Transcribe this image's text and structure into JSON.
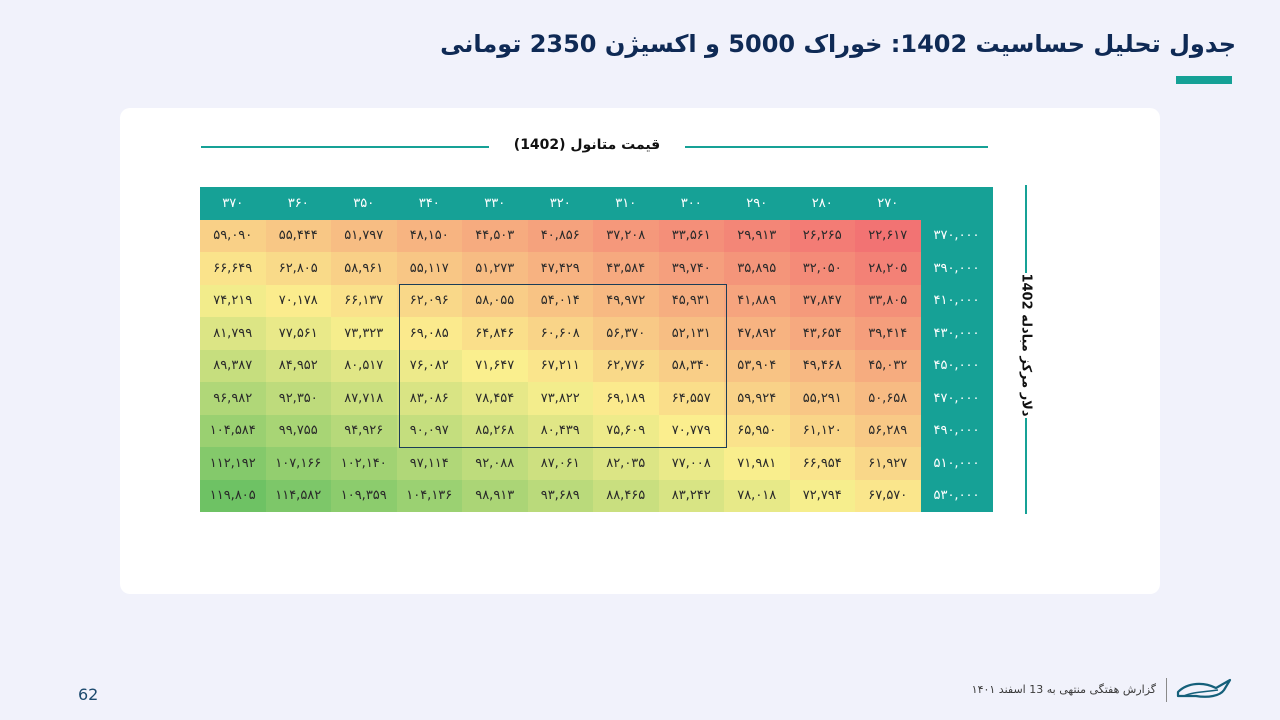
{
  "title": "جدول تحلیل حساسیت 1402: خوراک 5000 و اکسیژن 2350 تومانی",
  "column_axis_title": "قیمت متانول (1402)",
  "row_axis_title": "دلار مرکز مبادله 1402",
  "colors": {
    "accent": "#16a196",
    "title": "#0f2a55",
    "low": "#f27373",
    "mid": "#fbef8e",
    "high": "#6ec264"
  },
  "chart_data": {
    "type": "heatmap",
    "column_headers": [
      "۳۷۰",
      "۳۶۰",
      "۳۵۰",
      "۳۴۰",
      "۳۳۰",
      "۳۲۰",
      "۳۱۰",
      "۳۰۰",
      "۲۹۰",
      "۲۸۰",
      "۲۷۰"
    ],
    "rows": [
      {
        "header": "۳۷۰,۰۰۰",
        "cells": [
          "۵۹,۰۹۰",
          "۵۵,۴۴۴",
          "۵۱,۷۹۷",
          "۴۸,۱۵۰",
          "۴۴,۵۰۳",
          "۴۰,۸۵۶",
          "۳۷,۲۰۸",
          "۳۳,۵۶۱",
          "۲۹,۹۱۳",
          "۲۶,۲۶۵",
          "۲۲,۶۱۷"
        ],
        "values": [
          59090,
          55444,
          51797,
          48150,
          44503,
          40856,
          37208,
          33561,
          29913,
          26265,
          22617
        ]
      },
      {
        "header": "۳۹۰,۰۰۰",
        "cells": [
          "۶۶,۶۴۹",
          "۶۲,۸۰۵",
          "۵۸,۹۶۱",
          "۵۵,۱۱۷",
          "۵۱,۲۷۳",
          "۴۷,۴۲۹",
          "۴۳,۵۸۴",
          "۳۹,۷۴۰",
          "۳۵,۸۹۵",
          "۳۲,۰۵۰",
          "۲۸,۲۰۵"
        ],
        "values": [
          66649,
          62805,
          58961,
          55117,
          51273,
          47429,
          43584,
          39740,
          35895,
          32050,
          28205
        ]
      },
      {
        "header": "۴۱۰,۰۰۰",
        "cells": [
          "۷۴,۲۱۹",
          "۷۰,۱۷۸",
          "۶۶,۱۳۷",
          "۶۲,۰۹۶",
          "۵۸,۰۵۵",
          "۵۴,۰۱۴",
          "۴۹,۹۷۲",
          "۴۵,۹۳۱",
          "۴۱,۸۸۹",
          "۳۷,۸۴۷",
          "۳۳,۸۰۵"
        ],
        "values": [
          74219,
          70178,
          66137,
          62096,
          58055,
          54014,
          49972,
          45931,
          41889,
          37847,
          33805
        ]
      },
      {
        "header": "۴۳۰,۰۰۰",
        "cells": [
          "۸۱,۷۹۹",
          "۷۷,۵۶۱",
          "۷۳,۳۲۳",
          "۶۹,۰۸۵",
          "۶۴,۸۴۶",
          "۶۰,۶۰۸",
          "۵۶,۳۷۰",
          "۵۲,۱۳۱",
          "۴۷,۸۹۲",
          "۴۳,۶۵۴",
          "۳۹,۴۱۴"
        ],
        "values": [
          81799,
          77561,
          73323,
          69085,
          64846,
          60608,
          56370,
          52131,
          47892,
          43654,
          39414
        ]
      },
      {
        "header": "۴۵۰,۰۰۰",
        "cells": [
          "۸۹,۳۸۷",
          "۸۴,۹۵۲",
          "۸۰,۵۱۷",
          "۷۶,۰۸۲",
          "۷۱,۶۴۷",
          "۶۷,۲۱۱",
          "۶۲,۷۷۶",
          "۵۸,۳۴۰",
          "۵۳,۹۰۴",
          "۴۹,۴۶۸",
          "۴۵,۰۳۲"
        ],
        "values": [
          89387,
          84952,
          80517,
          76082,
          71647,
          67211,
          62776,
          58340,
          53904,
          49468,
          45032
        ]
      },
      {
        "header": "۴۷۰,۰۰۰",
        "cells": [
          "۹۶,۹۸۲",
          "۹۲,۳۵۰",
          "۸۷,۷۱۸",
          "۸۳,۰۸۶",
          "۷۸,۴۵۴",
          "۷۳,۸۲۲",
          "۶۹,۱۸۹",
          "۶۴,۵۵۷",
          "۵۹,۹۲۴",
          "۵۵,۲۹۱",
          "۵۰,۶۵۸"
        ],
        "values": [
          96982,
          92350,
          87718,
          83086,
          78454,
          73822,
          69189,
          64557,
          59924,
          55291,
          50658
        ]
      },
      {
        "header": "۴۹۰,۰۰۰",
        "cells": [
          "۱۰۴,۵۸۴",
          "۹۹,۷۵۵",
          "۹۴,۹۲۶",
          "۹۰,۰۹۷",
          "۸۵,۲۶۸",
          "۸۰,۴۳۹",
          "۷۵,۶۰۹",
          "۷۰,۷۷۹",
          "۶۵,۹۵۰",
          "۶۱,۱۲۰",
          "۵۶,۲۸۹"
        ],
        "values": [
          104584,
          99755,
          94926,
          90097,
          85268,
          80439,
          75609,
          70779,
          65950,
          61120,
          56289
        ]
      },
      {
        "header": "۵۱۰,۰۰۰",
        "cells": [
          "۱۱۲,۱۹۲",
          "۱۰۷,۱۶۶",
          "۱۰۲,۱۴۰",
          "۹۷,۱۱۴",
          "۹۲,۰۸۸",
          "۸۷,۰۶۱",
          "۸۲,۰۳۵",
          "۷۷,۰۰۸",
          "۷۱,۹۸۱",
          "۶۶,۹۵۴",
          "۶۱,۹۲۷"
        ],
        "values": [
          112192,
          107166,
          102140,
          97114,
          92088,
          87061,
          82035,
          77008,
          71981,
          66954,
          61927
        ]
      },
      {
        "header": "۵۳۰,۰۰۰",
        "cells": [
          "۱۱۹,۸۰۵",
          "۱۱۴,۵۸۲",
          "۱۰۹,۳۵۹",
          "۱۰۴,۱۳۶",
          "۹۸,۹۱۳",
          "۹۳,۶۸۹",
          "۸۸,۴۶۵",
          "۸۳,۲۴۲",
          "۷۸,۰۱۸",
          "۷۲,۷۹۴",
          "۶۷,۵۷۰"
        ],
        "values": [
          119805,
          114582,
          109359,
          104136,
          98913,
          93689,
          88465,
          83242,
          78018,
          72794,
          67570
        ]
      }
    ],
    "highlighted_block": {
      "rows": [
        "۴۱۰,۰۰۰",
        "۴۹۰,۰۰۰"
      ],
      "columns": [
        "۳۴۰",
        "۳۰۰"
      ]
    }
  },
  "footer": {
    "page_number": "62",
    "text": "گزارش هفتگی منتهی به 13 اسفند ۱۴۰۱"
  }
}
